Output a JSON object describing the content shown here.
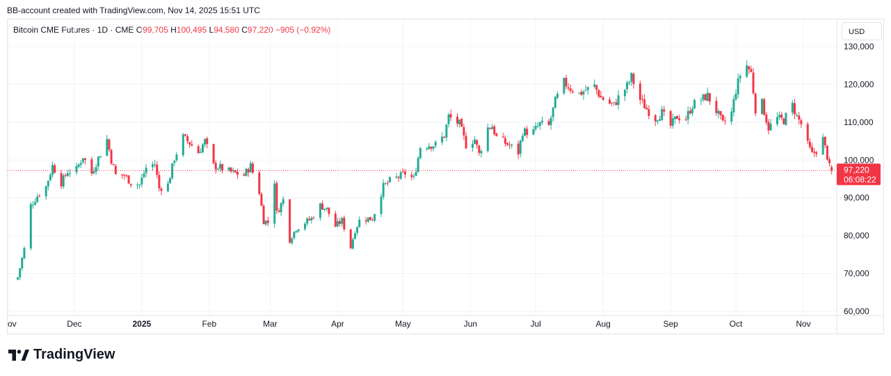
{
  "header": {
    "text": "BB-account created with TradingView.com, Nov 14, 2025 15:51 UTC"
  },
  "legend": {
    "symbol": "Bitcoin CME Futures · 1D · CME",
    "o_label": "O",
    "o": "99,705",
    "h_label": "H",
    "h": "100,495",
    "l_label": "L",
    "l": "94,580",
    "c_label": "C",
    "c": "97,220",
    "change": "−905 (−0.92%)"
  },
  "currency_button": "USD",
  "price_tag": {
    "price": "97,220",
    "countdown": "06:08:22"
  },
  "logo_text": "TradingView",
  "colors": {
    "up": "#22ab94",
    "down": "#f23645",
    "grid": "#f0f3fa",
    "axis_text": "#131722"
  },
  "chart_data": {
    "type": "candlestick",
    "title": "Bitcoin CME Futures · 1D · CME",
    "ylim": [
      58000,
      135000
    ],
    "y_ticks": [
      130000,
      120000,
      110000,
      100000,
      90000,
      80000,
      70000,
      60000
    ],
    "y_tick_labels": [
      "130,000",
      "120,000",
      "110,000",
      "100,000",
      "90,000",
      "80,000",
      "70,000",
      "60,000"
    ],
    "x_tick_labels": [
      "ov",
      "Dec",
      "2025",
      "Feb",
      "Mar",
      "Apr",
      "May",
      "Jun",
      "Jul",
      "Aug",
      "Sep",
      "Oct",
      "Nov"
    ],
    "x_tick_dates": [
      "2024-11-01",
      "2024-12-01",
      "2025-01-01",
      "2025-02-01",
      "2025-03-01",
      "2025-04-01",
      "2025-05-01",
      "2025-06-01",
      "2025-07-01",
      "2025-08-01",
      "2025-09-01",
      "2025-10-01",
      "2025-11-01"
    ],
    "last_price": 97220,
    "close_series": [
      [
        "2024-11-05",
        69000
      ],
      [
        "2024-11-08",
        76500
      ],
      [
        "2024-11-11",
        88000
      ],
      [
        "2024-11-14",
        90500
      ],
      [
        "2024-11-18",
        93000
      ],
      [
        "2024-11-21",
        98500
      ],
      [
        "2024-11-25",
        94000
      ],
      [
        "2024-11-28",
        97000
      ],
      [
        "2024-12-02",
        97500
      ],
      [
        "2024-12-05",
        101000
      ],
      [
        "2024-12-09",
        96500
      ],
      [
        "2024-12-12",
        100500
      ],
      [
        "2024-12-16",
        105500
      ],
      [
        "2024-12-18",
        100000
      ],
      [
        "2024-12-20",
        96000
      ],
      [
        "2024-12-24",
        96000
      ],
      [
        "2024-12-27",
        94000
      ],
      [
        "2024-12-31",
        93500
      ],
      [
        "2025-01-03",
        98000
      ],
      [
        "2025-01-07",
        99000
      ],
      [
        "2025-01-09",
        92500
      ],
      [
        "2025-01-13",
        93500
      ],
      [
        "2025-01-16",
        100500
      ],
      [
        "2025-01-20",
        106000
      ],
      [
        "2025-01-23",
        104500
      ],
      [
        "2025-01-27",
        102000
      ],
      [
        "2025-01-30",
        105000
      ],
      [
        "2025-02-03",
        98500
      ],
      [
        "2025-02-06",
        98000
      ],
      [
        "2025-02-10",
        97000
      ],
      [
        "2025-02-13",
        96500
      ],
      [
        "2025-02-17",
        96000
      ],
      [
        "2025-02-20",
        98500
      ],
      [
        "2025-02-24",
        91500
      ],
      [
        "2025-02-26",
        84000
      ],
      [
        "2025-02-28",
        83500
      ],
      [
        "2025-03-03",
        94500
      ],
      [
        "2025-03-04",
        86000
      ],
      [
        "2025-03-07",
        89500
      ],
      [
        "2025-03-10",
        79000
      ],
      [
        "2025-03-13",
        82000
      ],
      [
        "2025-03-17",
        83500
      ],
      [
        "2025-03-20",
        84500
      ],
      [
        "2025-03-24",
        88000
      ],
      [
        "2025-03-27",
        87000
      ],
      [
        "2025-03-31",
        82500
      ],
      [
        "2025-04-03",
        84000
      ],
      [
        "2025-04-07",
        77000
      ],
      [
        "2025-04-09",
        81500
      ],
      [
        "2025-04-11",
        84000
      ],
      [
        "2025-04-14",
        84500
      ],
      [
        "2025-04-17",
        84500
      ],
      [
        "2025-04-22",
        93000
      ],
      [
        "2025-04-25",
        94500
      ],
      [
        "2025-04-29",
        95500
      ],
      [
        "2025-05-02",
        96500
      ],
      [
        "2025-05-06",
        95000
      ],
      [
        "2025-05-09",
        103500
      ],
      [
        "2025-05-13",
        104000
      ],
      [
        "2025-05-16",
        104000
      ],
      [
        "2025-05-20",
        106500
      ],
      [
        "2025-05-22",
        111500
      ],
      [
        "2025-05-27",
        109500
      ],
      [
        "2025-05-30",
        104000
      ],
      [
        "2025-06-03",
        105500
      ],
      [
        "2025-06-05",
        101500
      ],
      [
        "2025-06-09",
        108500
      ],
      [
        "2025-06-11",
        109000
      ],
      [
        "2025-06-13",
        106000
      ],
      [
        "2025-06-17",
        104500
      ],
      [
        "2025-06-20",
        103500
      ],
      [
        "2025-06-23",
        102000
      ],
      [
        "2025-06-25",
        107500
      ],
      [
        "2025-06-30",
        107500
      ],
      [
        "2025-07-03",
        109500
      ],
      [
        "2025-07-07",
        109000
      ],
      [
        "2025-07-10",
        115500
      ],
      [
        "2025-07-14",
        120500
      ],
      [
        "2025-07-17",
        119000
      ],
      [
        "2025-07-21",
        117500
      ],
      [
        "2025-07-24",
        118500
      ],
      [
        "2025-07-28",
        119500
      ],
      [
        "2025-07-31",
        116500
      ],
      [
        "2025-08-04",
        115000
      ],
      [
        "2025-08-06",
        114500
      ],
      [
        "2025-08-08",
        116500
      ],
      [
        "2025-08-12",
        119500
      ],
      [
        "2025-08-14",
        122000
      ],
      [
        "2025-08-18",
        116000
      ],
      [
        "2025-08-21",
        113500
      ],
      [
        "2025-08-25",
        111000
      ],
      [
        "2025-08-28",
        112500
      ],
      [
        "2025-09-01",
        109000
      ],
      [
        "2025-09-04",
        111500
      ],
      [
        "2025-09-08",
        111000
      ],
      [
        "2025-09-11",
        114500
      ],
      [
        "2025-09-15",
        116000
      ],
      [
        "2025-09-18",
        117000
      ],
      [
        "2025-09-22",
        113000
      ],
      [
        "2025-09-25",
        109500
      ],
      [
        "2025-09-29",
        112500
      ],
      [
        "2025-10-01",
        118500
      ],
      [
        "2025-10-03",
        122500
      ],
      [
        "2025-10-06",
        125000
      ],
      [
        "2025-10-08",
        123000
      ],
      [
        "2025-10-10",
        113500
      ],
      [
        "2025-10-13",
        115000
      ],
      [
        "2025-10-16",
        108500
      ],
      [
        "2025-10-20",
        111000
      ],
      [
        "2025-10-23",
        110500
      ],
      [
        "2025-10-27",
        114500
      ],
      [
        "2025-10-29",
        111500
      ],
      [
        "2025-10-31",
        109500
      ],
      [
        "2025-11-03",
        104000
      ],
      [
        "2025-11-05",
        101500
      ],
      [
        "2025-11-07",
        102500
      ],
      [
        "2025-11-10",
        105500
      ],
      [
        "2025-11-12",
        101000
      ],
      [
        "2025-11-13",
        98100
      ],
      [
        "2025-11-14",
        97220
      ]
    ]
  }
}
